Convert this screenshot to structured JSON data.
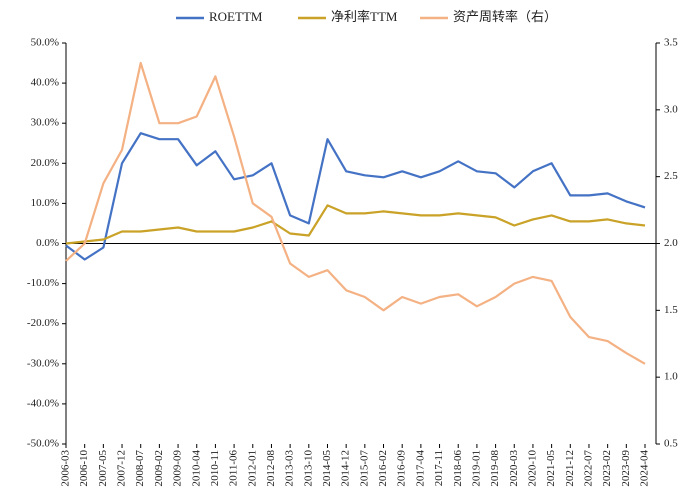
{
  "chart_data": {
    "type": "line",
    "categories": [
      "2006-03",
      "2006-10",
      "2007-05",
      "2007-12",
      "2008-07",
      "2009-02",
      "2009-09",
      "2010-04",
      "2010-11",
      "2011-06",
      "2012-01",
      "2012-08",
      "2013-03",
      "2013-10",
      "2014-05",
      "2014-12",
      "2015-07",
      "2016-02",
      "2016-09",
      "2017-04",
      "2017-11",
      "2018-06",
      "2019-01",
      "2019-08",
      "2020-03",
      "2020-10",
      "2021-05",
      "2021-12",
      "2022-07",
      "2023-02",
      "2023-09",
      "2024-04"
    ],
    "series": [
      {
        "name": "ROETTM",
        "color": "#4472c4",
        "values": [
          -0.5,
          -4,
          -1,
          20,
          27.5,
          26,
          26,
          19.5,
          23,
          16,
          17,
          20,
          7,
          5,
          26,
          18,
          17,
          16.5,
          18,
          16.5,
          18,
          20.5,
          18,
          17.5,
          14,
          18,
          20,
          12,
          12,
          12.5,
          10.5,
          9
        ]
      },
      {
        "name": "净利率TTM",
        "color": "#c9a227",
        "values": [
          0,
          0.5,
          1,
          3,
          3,
          3.5,
          4,
          3,
          3,
          3,
          4,
          5.5,
          2.5,
          2,
          9.5,
          7.5,
          7.5,
          8,
          7.5,
          7,
          7,
          7.5,
          7,
          6.5,
          4.5,
          6,
          7,
          5.5,
          5.5,
          6,
          5,
          4.5
        ]
      },
      {
        "name": "资产周转率（右）",
        "color": "#f4b183",
        "axis": "y2",
        "values": [
          1.87,
          2.0,
          2.45,
          2.7,
          3.35,
          2.9,
          2.9,
          2.95,
          3.25,
          2.8,
          2.3,
          2.2,
          1.85,
          1.75,
          1.8,
          1.65,
          1.6,
          1.5,
          1.6,
          1.55,
          1.6,
          1.62,
          1.53,
          1.6,
          1.7,
          1.75,
          1.72,
          1.45,
          1.3,
          1.27,
          1.18,
          1.1
        ]
      }
    ],
    "ylim": [
      -50,
      50
    ],
    "yticks": [
      {
        "value": -50,
        "label": "-50.0%"
      },
      {
        "value": -40,
        "label": "-40.0%"
      },
      {
        "value": -30,
        "label": "-30.0%"
      },
      {
        "value": -20,
        "label": "-20.0%"
      },
      {
        "value": -10,
        "label": "-10.0%"
      },
      {
        "value": 0,
        "label": "0.0%"
      },
      {
        "value": 10,
        "label": "10.0%"
      },
      {
        "value": 20,
        "label": "20.0%"
      },
      {
        "value": 30,
        "label": "30.0%"
      },
      {
        "value": 40,
        "label": "40.0%"
      },
      {
        "value": 50,
        "label": "50.0%"
      }
    ],
    "y2lim": [
      0.5,
      3.5
    ],
    "y2ticks": [
      0.5,
      {
        "value": 1,
        "label": "1.0"
      },
      1.5,
      {
        "value": 2,
        "label": "2.0"
      },
      2.5,
      {
        "value": 3,
        "label": "3.0"
      },
      3.5
    ],
    "legend": "top"
  }
}
